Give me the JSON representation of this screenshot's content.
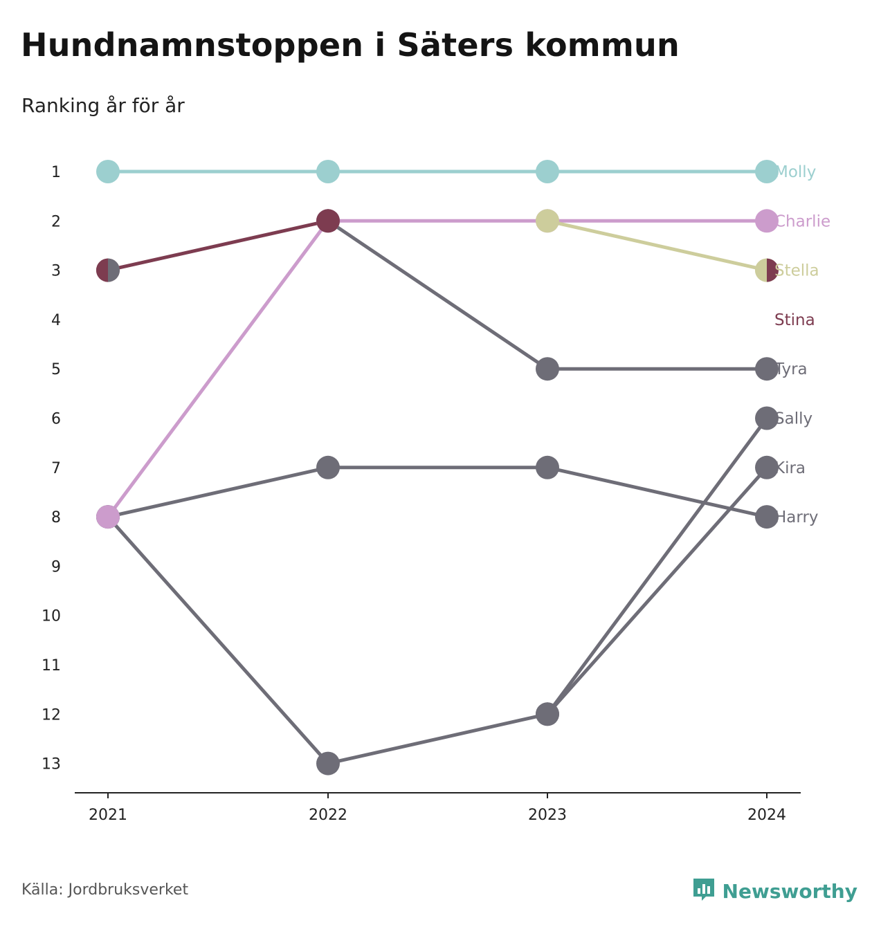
{
  "header": {
    "title": "Hundnamnstoppen i Säters kommun",
    "subtitle": "Ranking år för år"
  },
  "footer": {
    "source": "Källa: Jordbruksverket",
    "brand": "Newsworthy",
    "brand_icon": "newsworthy-logo-icon",
    "brand_color": "#3f9e92"
  },
  "chart_data": {
    "type": "line",
    "chart_kind": "bump-chart",
    "x": [
      "2021",
      "2022",
      "2023",
      "2024"
    ],
    "ylim": [
      1,
      13
    ],
    "y_inverted": true,
    "y_ticks": [
      "1",
      "2",
      "3",
      "4",
      "5",
      "6",
      "7",
      "8",
      "9",
      "10",
      "11",
      "12",
      "13"
    ],
    "grid": false,
    "default_color": "#6e6d77",
    "series": [
      {
        "name": "Molly",
        "values": [
          1,
          1,
          1,
          1
        ],
        "color": "#9ccfcf"
      },
      {
        "name": "Charlie",
        "values": [
          8,
          2,
          2,
          2
        ],
        "color": "#cc9ccc"
      },
      {
        "name": "Stella",
        "values": [
          null,
          null,
          2,
          3
        ],
        "color": "#cdcd9c"
      },
      {
        "name": "Stina",
        "values": [
          3,
          2,
          null,
          null
        ],
        "color": "#7d3c50"
      },
      {
        "name": "Tyra",
        "values": [
          null,
          2,
          5,
          5
        ],
        "color": "#6e6d77"
      },
      {
        "name": "Sally",
        "values": [
          8,
          13,
          12,
          6
        ],
        "color": "#6e6d77"
      },
      {
        "name": "Kira",
        "values": [
          null,
          null,
          12,
          7
        ],
        "color": "#6e6d77"
      },
      {
        "name": "Harry",
        "values": [
          8,
          7,
          7,
          8
        ],
        "color": "#6e6d77"
      }
    ],
    "end_labels": [
      "Molly",
      "Charlie",
      "Stella",
      "Stina",
      "Tyra",
      "Sally",
      "Kira",
      "Harry"
    ],
    "end_label_ranks": [
      1,
      2,
      3,
      4,
      5,
      6,
      7,
      8
    ],
    "split_markers": [
      {
        "x": "2021",
        "rank": 3,
        "left_color": "#7d3c50",
        "right_color": "#6e6d77"
      },
      {
        "x": "2024",
        "rank": 3,
        "left_color": "#cdcd9c",
        "right_color": "#7d3c50"
      }
    ]
  }
}
